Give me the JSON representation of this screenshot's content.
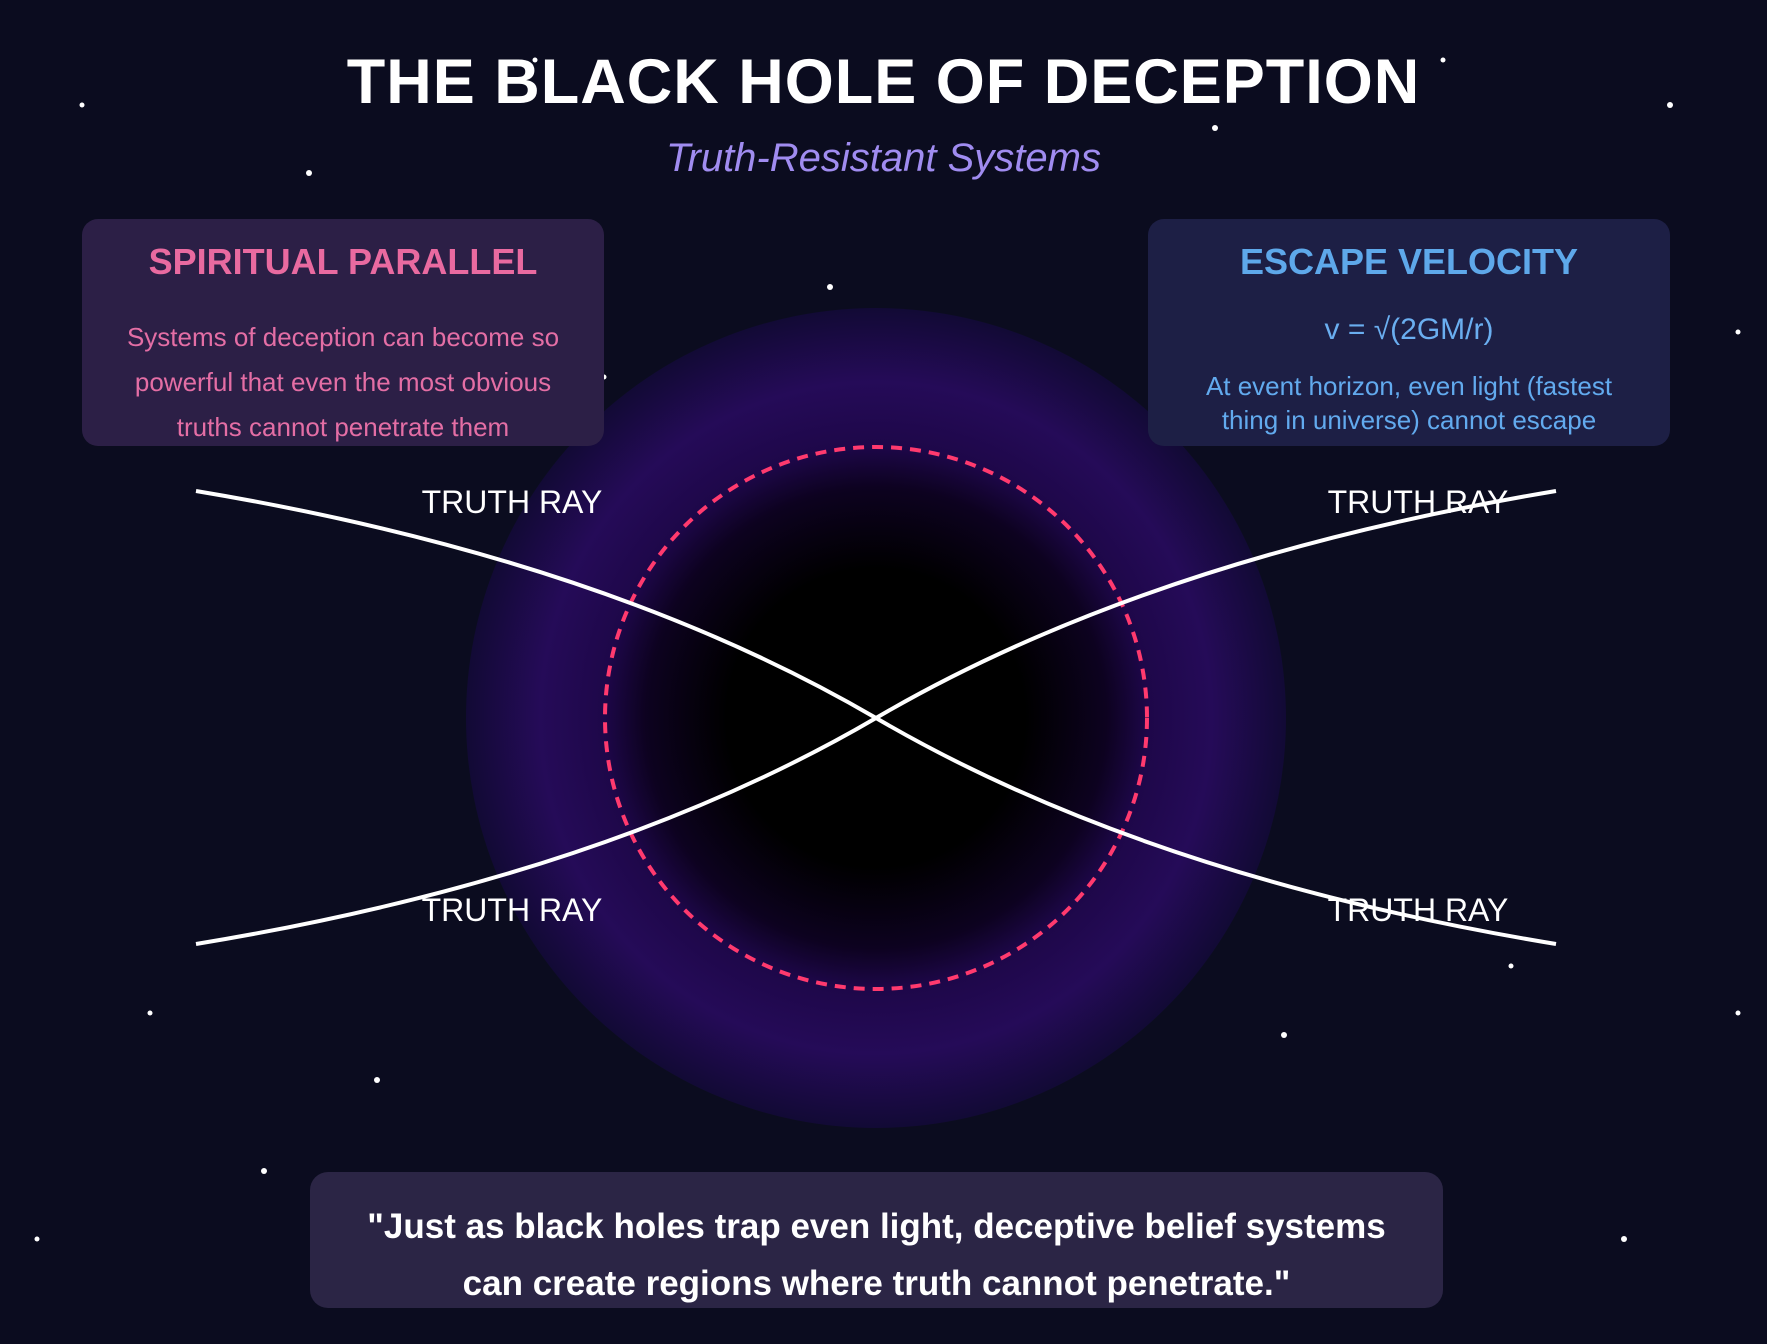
{
  "title": "THE BLACK HOLE OF DECEPTION",
  "subtitle": "Truth-Resistant Systems",
  "left_panel": {
    "heading": "SPIRITUAL PARALLEL",
    "body": "Systems of deception can become so powerful that even the most obvious truths cannot penetrate them"
  },
  "right_panel": {
    "heading": "ESCAPE VELOCITY",
    "formula": "v = √(2GM/r)",
    "body": "At event horizon, even light (fastest thing in universe) cannot escape"
  },
  "ray_labels": {
    "top_left": "TRUTH RAY",
    "top_right": "TRUTH RAY",
    "bottom_left": "TRUTH RAY",
    "bottom_right": "TRUTH RAY"
  },
  "quote": "\"Just as black holes trap even light, deceptive belief systems can create regions where truth cannot penetrate.\"",
  "colors": {
    "background": "#0b0c1f",
    "accretion_glow": "#2a0a5e",
    "event_horizon": "#ff3a6e",
    "title": "#ffffff",
    "subtitle": "#a08cf0",
    "left_accent": "#e96aa0",
    "right_accent": "#5ea8ea"
  }
}
